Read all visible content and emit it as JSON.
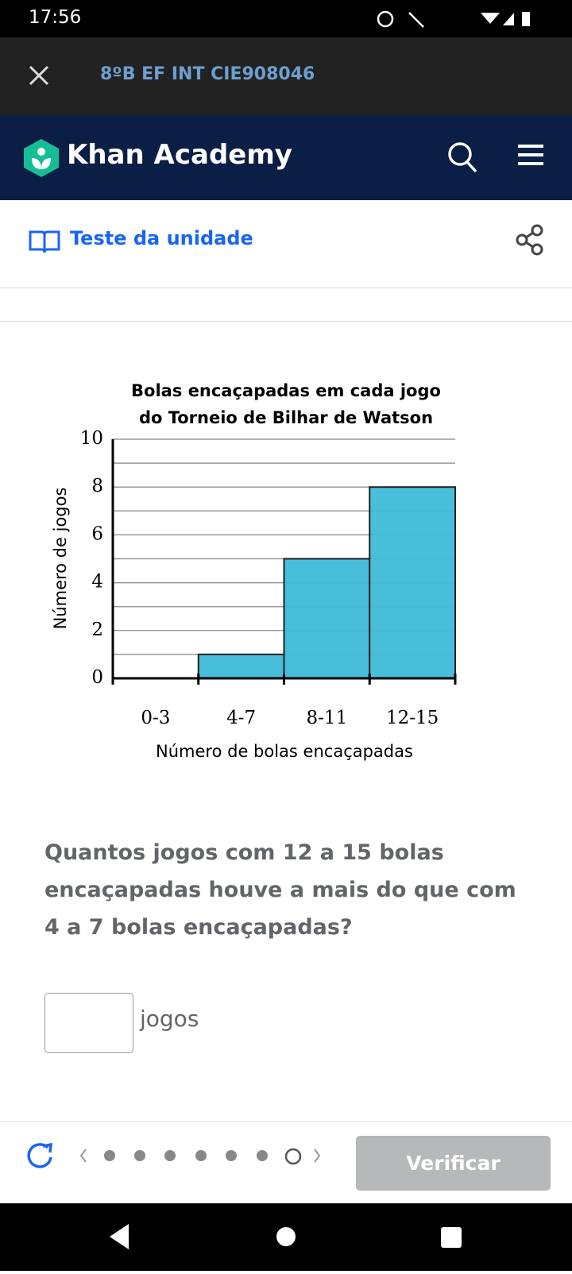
{
  "status_bar": {
    "time": "17:56"
  },
  "top_bar": {
    "title": "8ºB EF INT CIE908046"
  },
  "header": {
    "brand": "Khan Academy"
  },
  "sub_header": {
    "link": "Teste da unidade"
  },
  "chart_data": {
    "type": "histogram",
    "title": [
      "Bolas encaçapadas em cada jogo",
      "do Torneio de Bilhar de Watson"
    ],
    "categories": [
      "0-3",
      "4-7",
      "8-11",
      "12-15"
    ],
    "values": [
      0,
      1,
      5,
      8
    ],
    "color": "#3fbad8",
    "xlabel": "Número de bolas encaçapadas",
    "ylabel": "Número de jogos",
    "ylim": [
      0,
      10
    ],
    "yticks": [
      0,
      2,
      4,
      6,
      8,
      10
    ],
    "minor_yticks": [
      1,
      3,
      5,
      7,
      9
    ],
    "grid": true
  },
  "question": {
    "text": "Quantos jogos com 12 a 15 bolas encaçapadas houve a mais do que com 4 a 7 bolas encaçapadas?"
  },
  "answer": {
    "unit": "jogos"
  },
  "footer": {
    "button": "Verificar"
  }
}
